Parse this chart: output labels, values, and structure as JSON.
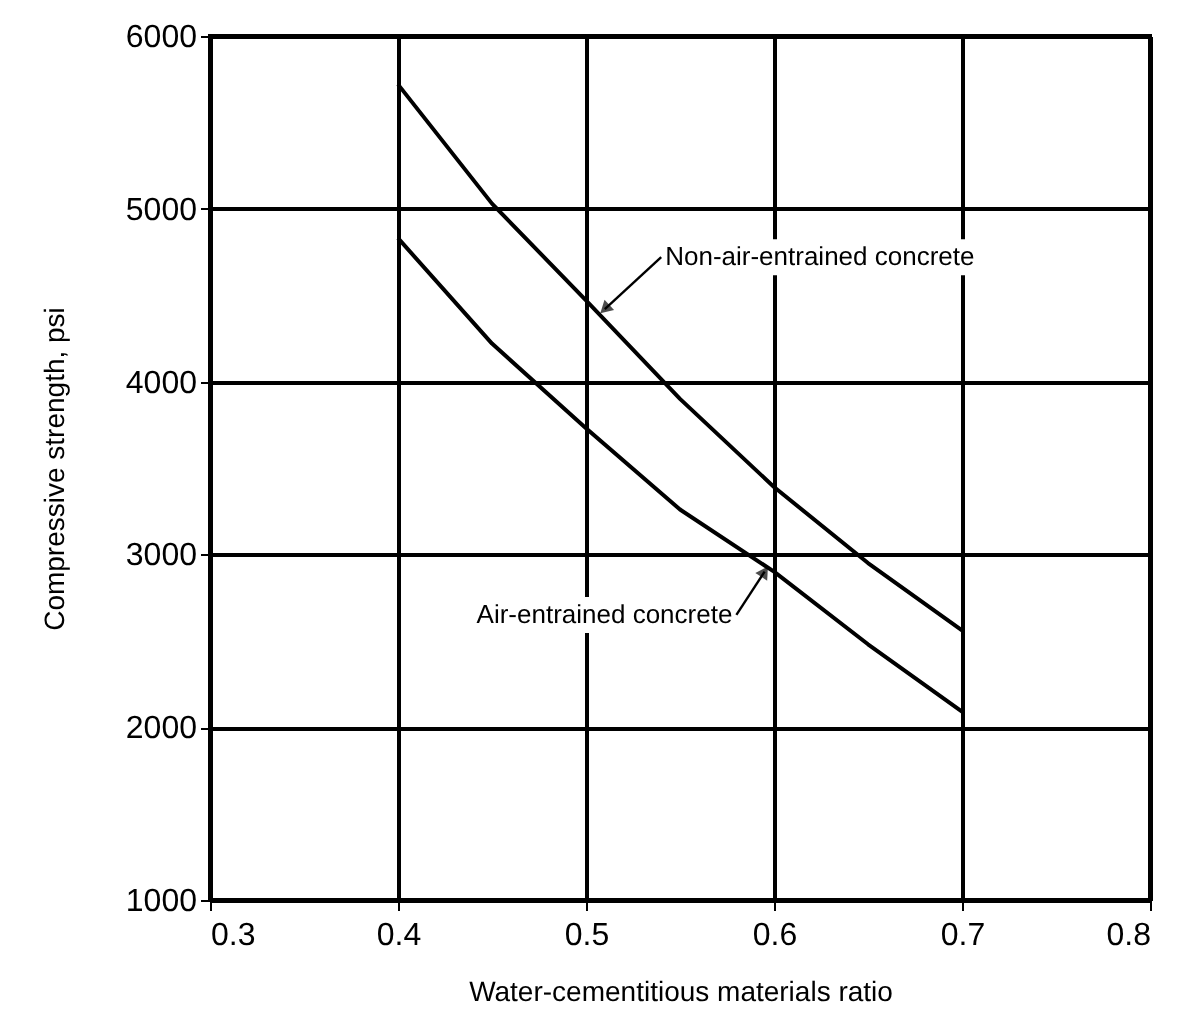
{
  "chart_data": {
    "type": "line",
    "xlabel": "Water-cementitious materials ratio",
    "ylabel": "Compressive strength, psi",
    "xlim": [
      0.3,
      0.8
    ],
    "xticks": [
      0.3,
      0.4,
      0.5,
      0.6,
      0.7,
      0.8
    ],
    "ylim": [
      1000,
      6000
    ],
    "yticks": [
      1000,
      2000,
      3000,
      4000,
      5000,
      6000
    ],
    "grid": true,
    "marker": "none",
    "line_style": "solid",
    "series": [
      {
        "color": "#000000",
        "x": [
          0.4,
          0.45,
          0.5,
          0.55,
          0.6,
          0.65,
          0.7
        ],
        "values": [
          5720,
          5030,
          4470,
          3900,
          3390,
          2950,
          2560
        ]
      },
      {
        "color": "#000000",
        "x": [
          0.4,
          0.45,
          0.5,
          0.55,
          0.6,
          0.65,
          0.7
        ],
        "values": [
          4830,
          4220,
          3730,
          3260,
          2900,
          2480,
          2090
        ]
      }
    ],
    "annotations": [
      {
        "text": "Non-air-entrained concrete",
        "x": 0.51,
        "y": 4420
      },
      {
        "text": "Air-entrained concrete",
        "x": 0.595,
        "y": 2900
      }
    ]
  }
}
